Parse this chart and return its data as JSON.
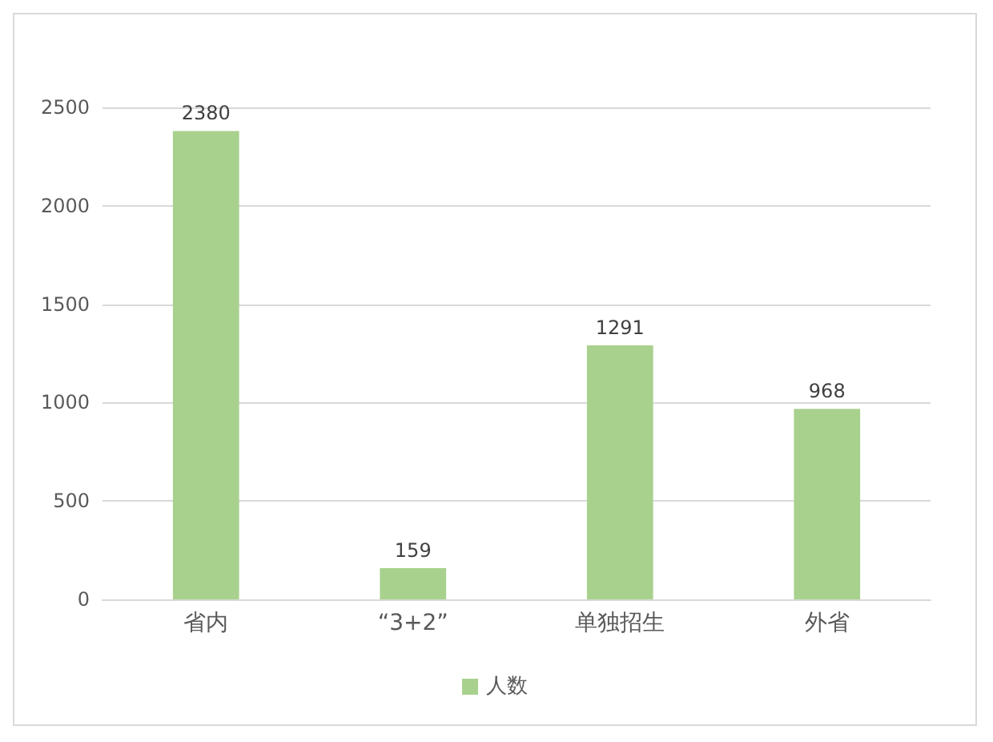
{
  "chart_data": {
    "type": "bar",
    "categories": [
      "省内",
      "“3+2”",
      "单独招生",
      "外省"
    ],
    "series": [
      {
        "name": "人数",
        "color": "#a9d18e",
        "values": [
          2380,
          159,
          1291,
          968
        ]
      }
    ],
    "ylim": [
      0,
      2500
    ],
    "yticks": [
      0,
      500,
      1000,
      1500,
      2000,
      2500
    ],
    "grid": "y",
    "legend": "bottom",
    "data_labels": true
  }
}
